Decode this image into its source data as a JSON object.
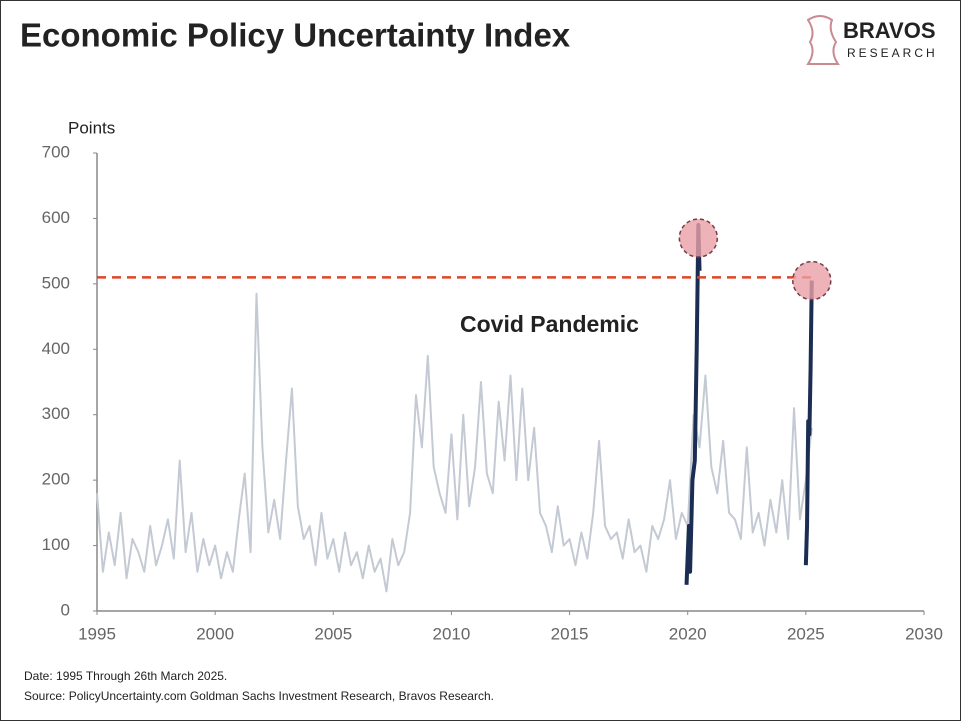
{
  "chart_data": {
    "type": "line",
    "title": "Economic Policy Uncertainty Index",
    "brand": "BRAVOS",
    "brand_sub": "RESEARCH",
    "ylabel": "Points",
    "annotation": "Covid Pandemic",
    "footnotes": [
      "Date: 1995 Through 26th March 2025.",
      "Source: PolicyUncertainty.com Goldman Sachs Investment Research, Bravos Research."
    ],
    "xlim": [
      1995,
      2030
    ],
    "xticks": [
      1995,
      2000,
      2005,
      2010,
      2015,
      2020,
      2025,
      2030
    ],
    "ylim": [
      0,
      700
    ],
    "yticks": [
      0,
      100,
      200,
      300,
      400,
      500,
      600,
      700
    ],
    "grid": false,
    "reference_line": {
      "y": 510,
      "color": "#e0442a"
    },
    "highlights": [
      {
        "x": 2020.45,
        "y": 570
      },
      {
        "x": 2025.25,
        "y": 505
      }
    ],
    "highlight_color": "#e8a0a8",
    "series": [
      {
        "color": "#c4cad4",
        "width": 2,
        "x": [
          1995,
          1995.25,
          1995.5,
          1995.75,
          1996,
          1996.25,
          1996.5,
          1996.75,
          1997,
          1997.25,
          1997.5,
          1997.75,
          1998,
          1998.25,
          1998.5,
          1998.75,
          1999,
          1999.25,
          1999.5,
          1999.75,
          2000,
          2000.25,
          2000.5,
          2000.75,
          2001,
          2001.25,
          2001.5,
          2001.75,
          2002,
          2002.25,
          2002.5,
          2002.75,
          2003,
          2003.25,
          2003.5,
          2003.75,
          2004,
          2004.25,
          2004.5,
          2004.75,
          2005,
          2005.25,
          2005.5,
          2005.75,
          2006,
          2006.25,
          2006.5,
          2006.75,
          2007,
          2007.25,
          2007.5,
          2007.75,
          2008,
          2008.25,
          2008.5,
          2008.75,
          2009,
          2009.25,
          2009.5,
          2009.75,
          2010,
          2010.25,
          2010.5,
          2010.75,
          2011,
          2011.25,
          2011.5,
          2011.75,
          2012,
          2012.25,
          2012.5,
          2012.75,
          2013,
          2013.25,
          2013.5,
          2013.75,
          2014,
          2014.25,
          2014.5,
          2014.75,
          2015,
          2015.25,
          2015.5,
          2015.75,
          2016,
          2016.25,
          2016.5,
          2016.75,
          2017,
          2017.25,
          2017.5,
          2017.75,
          2018,
          2018.25,
          2018.5,
          2018.75,
          2019,
          2019.25,
          2019.5,
          2019.75,
          2020,
          2020.25,
          2020.5,
          2020.75,
          2021,
          2021.25,
          2021.5,
          2021.75,
          2022,
          2022.25,
          2022.5,
          2022.75,
          2023,
          2023.25,
          2023.5,
          2023.75,
          2024,
          2024.25,
          2024.5,
          2024.75,
          2025,
          2025.25
        ],
        "values": [
          180,
          60,
          120,
          70,
          150,
          50,
          110,
          90,
          60,
          130,
          70,
          100,
          140,
          80,
          230,
          90,
          150,
          60,
          110,
          70,
          100,
          50,
          90,
          60,
          140,
          210,
          90,
          485,
          250,
          120,
          170,
          110,
          230,
          340,
          160,
          110,
          130,
          70,
          150,
          80,
          110,
          60,
          120,
          70,
          90,
          50,
          100,
          60,
          80,
          30,
          110,
          70,
          90,
          150,
          330,
          250,
          390,
          220,
          180,
          150,
          270,
          140,
          300,
          160,
          220,
          350,
          210,
          180,
          320,
          230,
          360,
          200,
          340,
          200,
          280,
          150,
          130,
          90,
          160,
          100,
          110,
          70,
          120,
          80,
          150,
          260,
          130,
          110,
          120,
          80,
          140,
          90,
          100,
          60,
          130,
          110,
          140,
          200,
          110,
          150,
          130,
          300,
          250,
          360,
          220,
          180,
          260,
          150,
          140,
          110,
          250,
          120,
          150,
          100,
          170,
          120,
          200,
          110,
          310,
          140,
          200,
          280
        ]
      },
      {
        "color": "#1b2d52",
        "width": 4,
        "x": [
          2019.95,
          2020.05,
          2020.1,
          2020.2,
          2020.3,
          2020.38,
          2020.45,
          2020.5
        ],
        "values": [
          40,
          130,
          60,
          200,
          230,
          400,
          590,
          520
        ]
      },
      {
        "color": "#1b2d52",
        "width": 4,
        "x": [
          2025.0,
          2025.05,
          2025.1,
          2025.15,
          2025.2,
          2025.25
        ],
        "values": [
          70,
          130,
          290,
          270,
          370,
          505
        ]
      }
    ]
  }
}
